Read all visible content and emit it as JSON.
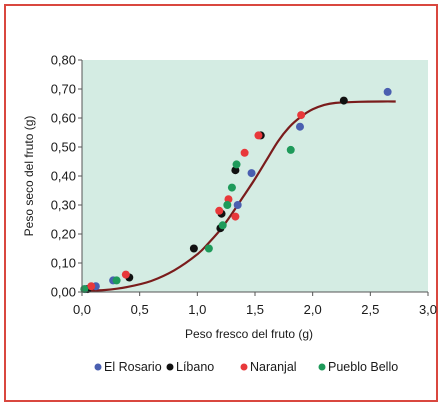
{
  "chart_data": {
    "type": "scatter",
    "title": "",
    "xlabel": "Peso fresco del fruto  (g)",
    "ylabel": "Peso seco del fruto (g)",
    "xlim": [
      0,
      3.0
    ],
    "ylim": [
      0,
      0.8
    ],
    "x_ticks": [
      "0,0",
      "0,5",
      "1,0",
      "1,5",
      "2,0",
      "2,5",
      "3,0"
    ],
    "x_tick_values": [
      0,
      0.5,
      1.0,
      1.5,
      2.0,
      2.5,
      3.0
    ],
    "y_ticks": [
      "0,00",
      "0,10",
      "0,20",
      "0,30",
      "0,40",
      "0,50",
      "0,60",
      "0,70",
      "0,80"
    ],
    "y_tick_values": [
      0,
      0.1,
      0.2,
      0.3,
      0.4,
      0.5,
      0.6,
      0.7,
      0.8
    ],
    "plot_background": "#d4ece3",
    "grid": false,
    "legend_position": "bottom",
    "series": [
      {
        "name": "El Rosario",
        "color": "#4a5fb0",
        "points": [
          [
            0.03,
            0.01
          ],
          [
            0.12,
            0.02
          ],
          [
            0.27,
            0.04
          ],
          [
            1.35,
            0.3
          ],
          [
            1.47,
            0.41
          ],
          [
            1.89,
            0.57
          ],
          [
            2.65,
            0.69
          ]
        ]
      },
      {
        "name": "Líbano",
        "color": "#111111",
        "points": [
          [
            0.05,
            0.01
          ],
          [
            0.41,
            0.05
          ],
          [
            0.97,
            0.15
          ],
          [
            1.2,
            0.22
          ],
          [
            1.21,
            0.27
          ],
          [
            1.33,
            0.42
          ],
          [
            1.55,
            0.54
          ],
          [
            2.27,
            0.66
          ]
        ]
      },
      {
        "name": "Naranjal",
        "color": "#e8383a",
        "points": [
          [
            0.08,
            0.02
          ],
          [
            0.38,
            0.06
          ],
          [
            1.19,
            0.28
          ],
          [
            1.27,
            0.32
          ],
          [
            1.33,
            0.26
          ],
          [
            1.41,
            0.48
          ],
          [
            1.53,
            0.54
          ],
          [
            1.9,
            0.61
          ]
        ]
      },
      {
        "name": "Pueblo Bello",
        "color": "#1e9a5a",
        "points": [
          [
            0.02,
            0.01
          ],
          [
            0.3,
            0.04
          ],
          [
            1.1,
            0.15
          ],
          [
            1.22,
            0.23
          ],
          [
            1.26,
            0.3
          ],
          [
            1.3,
            0.36
          ],
          [
            1.34,
            0.44
          ],
          [
            1.81,
            0.49
          ]
        ]
      }
    ],
    "fit_curve": {
      "color": "#7a1c1c",
      "points": [
        [
          0.0,
          0.005
        ],
        [
          0.2,
          0.007
        ],
        [
          0.4,
          0.018
        ],
        [
          0.6,
          0.038
        ],
        [
          0.8,
          0.075
        ],
        [
          1.0,
          0.13
        ],
        [
          1.1,
          0.17
        ],
        [
          1.2,
          0.215
        ],
        [
          1.3,
          0.27
        ],
        [
          1.4,
          0.33
        ],
        [
          1.5,
          0.39
        ],
        [
          1.6,
          0.455
        ],
        [
          1.7,
          0.52
        ],
        [
          1.8,
          0.57
        ],
        [
          1.9,
          0.605
        ],
        [
          2.0,
          0.63
        ],
        [
          2.1,
          0.645
        ],
        [
          2.2,
          0.652
        ],
        [
          2.4,
          0.656
        ],
        [
          2.6,
          0.657
        ],
        [
          2.72,
          0.657
        ]
      ]
    }
  }
}
